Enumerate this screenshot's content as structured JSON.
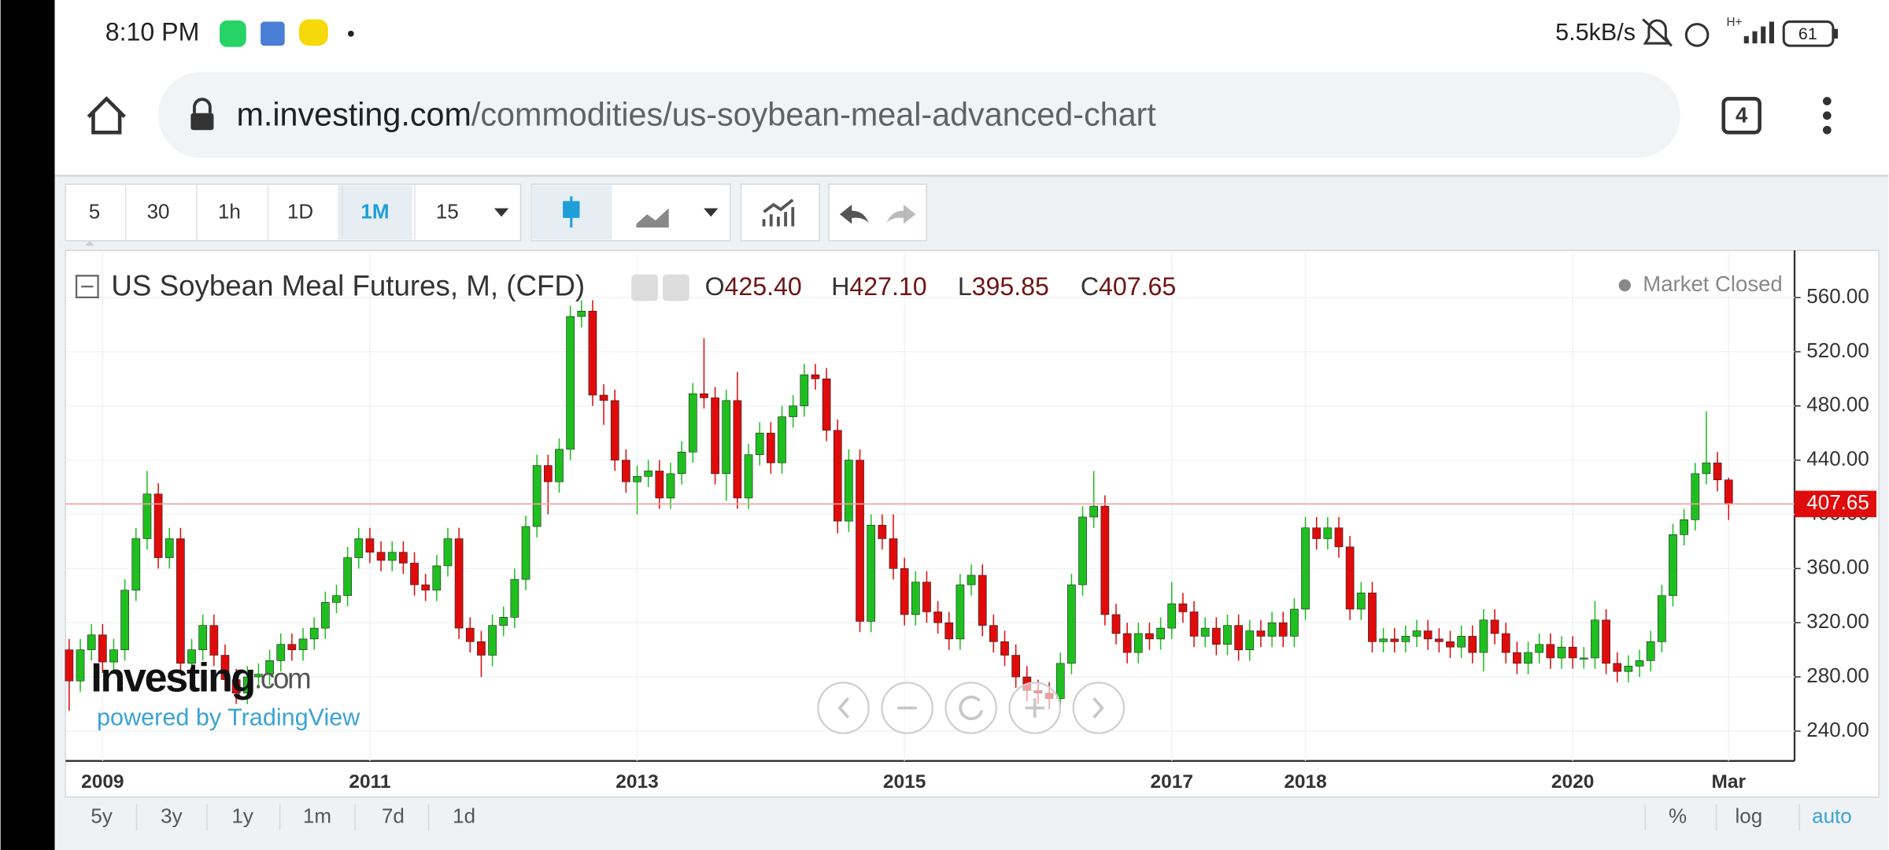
{
  "status_bar": {
    "time": "8:10 PM",
    "speed": "5.5kB/s",
    "network": "H+",
    "battery": "61"
  },
  "browser": {
    "url_host": "m.investing.com",
    "url_path": "/commodities/us-soybean-meal-advanced-chart",
    "tab_count": "4"
  },
  "toolbar": {
    "intervals": [
      "5",
      "30",
      "1h",
      "1D",
      "1M",
      "15"
    ]
  },
  "footer": {
    "ranges": [
      "5y",
      "3y",
      "1y",
      "1m",
      "7d",
      "1d"
    ],
    "scale_options": [
      "%",
      "log",
      "auto"
    ]
  },
  "chart_data": {
    "type": "candlestick",
    "title": "US Soybean Meal Futures, M, (CFD)",
    "header_values": [
      {
        "prefix": "O",
        "text": "425.40"
      },
      {
        "prefix": "H",
        "text": "427.10"
      },
      {
        "prefix": "L",
        "text": "395.85"
      },
      {
        "prefix": "C",
        "text": "407.65"
      }
    ],
    "status": "Market Closed",
    "watermark": "Investing",
    "watermark_suffix": ".com",
    "powered_by": "powered by TradingView",
    "up_color": "#1fbf1f",
    "down_color": "#e00b0b",
    "grid": true,
    "last_price_line": true,
    "ylim": [
      218,
      593
    ],
    "yticks": [
      {
        "value": 240,
        "label": "240.00"
      },
      {
        "value": 280,
        "label": "280.00"
      },
      {
        "value": 320,
        "label": "320.00"
      },
      {
        "value": 360,
        "label": "360.00"
      },
      {
        "value": 400,
        "label": "400.00"
      },
      {
        "value": 440,
        "label": "440.00"
      },
      {
        "value": 480,
        "label": "480.00"
      },
      {
        "value": 520,
        "label": "520.00"
      },
      {
        "value": 560,
        "label": "560.00"
      }
    ],
    "categories": [
      null,
      null,
      null,
      "2009",
      null,
      null,
      null,
      null,
      null,
      null,
      null,
      null,
      null,
      null,
      null,
      null,
      null,
      null,
      null,
      null,
      null,
      null,
      null,
      null,
      null,
      null,
      null,
      "2011",
      null,
      null,
      null,
      null,
      null,
      null,
      null,
      null,
      null,
      null,
      null,
      null,
      null,
      null,
      null,
      null,
      null,
      null,
      null,
      null,
      null,
      null,
      null,
      "2013",
      null,
      null,
      null,
      null,
      null,
      null,
      null,
      null,
      null,
      null,
      null,
      null,
      null,
      null,
      null,
      null,
      null,
      null,
      null,
      null,
      null,
      null,
      null,
      "2015",
      null,
      null,
      null,
      null,
      null,
      null,
      null,
      null,
      null,
      null,
      null,
      null,
      null,
      null,
      null,
      null,
      null,
      null,
      null,
      null,
      null,
      null,
      null,
      "2017",
      null,
      null,
      null,
      null,
      null,
      null,
      null,
      null,
      null,
      null,
      null,
      "2018",
      null,
      null,
      null,
      null,
      null,
      null,
      null,
      null,
      null,
      null,
      null,
      null,
      null,
      null,
      null,
      null,
      null,
      null,
      null,
      null,
      null,
      null,
      null,
      "2020",
      null,
      null,
      null,
      null,
      null,
      null,
      null,
      null,
      null,
      null,
      null,
      null,
      null,
      "Mar"
    ],
    "open": [
      300,
      277,
      300,
      311,
      291,
      300,
      344,
      382,
      415,
      368,
      382,
      290,
      300,
      318,
      296,
      278,
      268,
      280,
      282,
      292,
      304,
      300,
      308,
      316,
      335,
      340,
      368,
      382,
      372,
      366,
      372,
      364,
      348,
      344,
      362,
      382,
      316,
      306,
      296,
      318,
      324,
      352,
      391,
      436,
      424,
      448,
      546,
      550,
      488,
      484,
      440,
      424,
      428,
      432,
      412,
      430,
      446,
      489,
      486,
      430,
      484,
      412,
      444,
      460,
      438,
      472,
      480,
      503,
      500,
      462,
      395,
      440,
      321,
      392,
      382,
      360,
      326,
      350,
      328,
      320,
      308,
      348,
      355,
      318,
      306,
      296,
      280,
      270,
      268,
      264,
      290,
      348,
      398,
      406,
      326,
      312,
      298,
      312,
      308,
      316,
      334,
      328,
      310,
      316,
      304,
      318,
      300,
      314,
      310,
      320,
      310,
      330,
      390,
      382,
      390,
      376,
      330,
      342,
      306,
      308,
      306,
      310,
      314,
      308,
      306,
      302,
      310,
      298,
      322,
      312,
      298,
      290,
      298,
      304,
      294,
      302,
      294,
      294,
      322,
      290,
      284,
      288,
      292,
      306,
      340,
      385,
      396,
      430,
      438,
      425.4
    ],
    "high": [
      308,
      308,
      319,
      319,
      308,
      352,
      390,
      432,
      423,
      390,
      390,
      308,
      326,
      326,
      304,
      286,
      288,
      290,
      300,
      312,
      312,
      316,
      324,
      343,
      348,
      376,
      390,
      390,
      380,
      380,
      380,
      372,
      356,
      370,
      390,
      390,
      324,
      314,
      326,
      332,
      360,
      399,
      444,
      444,
      456,
      554,
      558,
      558,
      496,
      492,
      448,
      436,
      440,
      440,
      438,
      454,
      497,
      530,
      494,
      492,
      505,
      452,
      468,
      468,
      480,
      488,
      511,
      511,
      508,
      470,
      448,
      448,
      400,
      400,
      400,
      368,
      358,
      358,
      336,
      328,
      356,
      363,
      363,
      326,
      314,
      304,
      288,
      278,
      276,
      298,
      356,
      406,
      432,
      414,
      334,
      320,
      320,
      320,
      324,
      350,
      342,
      336,
      324,
      324,
      326,
      326,
      322,
      322,
      328,
      328,
      338,
      398,
      398,
      398,
      398,
      384,
      350,
      350,
      316,
      316,
      318,
      322,
      322,
      316,
      314,
      318,
      318,
      330,
      330,
      320,
      306,
      306,
      312,
      312,
      310,
      310,
      302,
      336,
      330,
      298,
      296,
      300,
      314,
      348,
      393,
      404,
      438,
      476,
      446,
      427.1
    ],
    "low": [
      255,
      269,
      292,
      283,
      283,
      292,
      336,
      374,
      360,
      360,
      282,
      282,
      292,
      288,
      270,
      260,
      260,
      272,
      274,
      284,
      292,
      292,
      300,
      308,
      327,
      332,
      360,
      364,
      358,
      358,
      356,
      340,
      336,
      336,
      354,
      308,
      298,
      280,
      288,
      310,
      316,
      344,
      383,
      400,
      416,
      440,
      538,
      480,
      466,
      432,
      416,
      400,
      420,
      404,
      404,
      422,
      438,
      478,
      422,
      410,
      404,
      404,
      436,
      430,
      430,
      464,
      472,
      492,
      454,
      386,
      387,
      313,
      313,
      374,
      352,
      318,
      318,
      320,
      312,
      300,
      300,
      340,
      310,
      298,
      288,
      272,
      262,
      260,
      256,
      256,
      282,
      340,
      390,
      318,
      304,
      290,
      290,
      300,
      300,
      308,
      320,
      302,
      302,
      296,
      296,
      292,
      292,
      302,
      302,
      302,
      302,
      322,
      374,
      374,
      368,
      322,
      322,
      298,
      298,
      298,
      298,
      302,
      300,
      298,
      294,
      294,
      290,
      284,
      304,
      290,
      282,
      282,
      290,
      286,
      286,
      286,
      286,
      286,
      282,
      276,
      276,
      280,
      284,
      298,
      332,
      377,
      388,
      422,
      417,
      395.85
    ],
    "close": [
      277,
      300,
      311,
      291,
      300,
      344,
      382,
      415,
      368,
      382,
      290,
      300,
      318,
      296,
      278,
      268,
      280,
      282,
      292,
      304,
      300,
      308,
      316,
      335,
      340,
      368,
      382,
      372,
      366,
      372,
      364,
      348,
      344,
      362,
      382,
      316,
      306,
      296,
      318,
      324,
      352,
      391,
      436,
      424,
      448,
      546,
      550,
      488,
      484,
      440,
      424,
      428,
      432,
      412,
      430,
      446,
      489,
      486,
      430,
      484,
      412,
      444,
      460,
      438,
      472,
      480,
      503,
      500,
      462,
      395,
      440,
      321,
      392,
      382,
      360,
      326,
      350,
      328,
      320,
      308,
      348,
      355,
      318,
      306,
      296,
      280,
      270,
      268,
      264,
      290,
      348,
      398,
      406,
      326,
      312,
      298,
      312,
      308,
      316,
      334,
      328,
      310,
      316,
      304,
      318,
      300,
      314,
      310,
      320,
      310,
      330,
      390,
      382,
      390,
      376,
      330,
      342,
      306,
      308,
      306,
      310,
      314,
      308,
      306,
      302,
      310,
      298,
      322,
      312,
      298,
      290,
      298,
      304,
      294,
      302,
      294,
      294,
      322,
      290,
      284,
      288,
      292,
      306,
      340,
      385,
      396,
      430,
      438,
      425.4,
      407.65
    ]
  }
}
